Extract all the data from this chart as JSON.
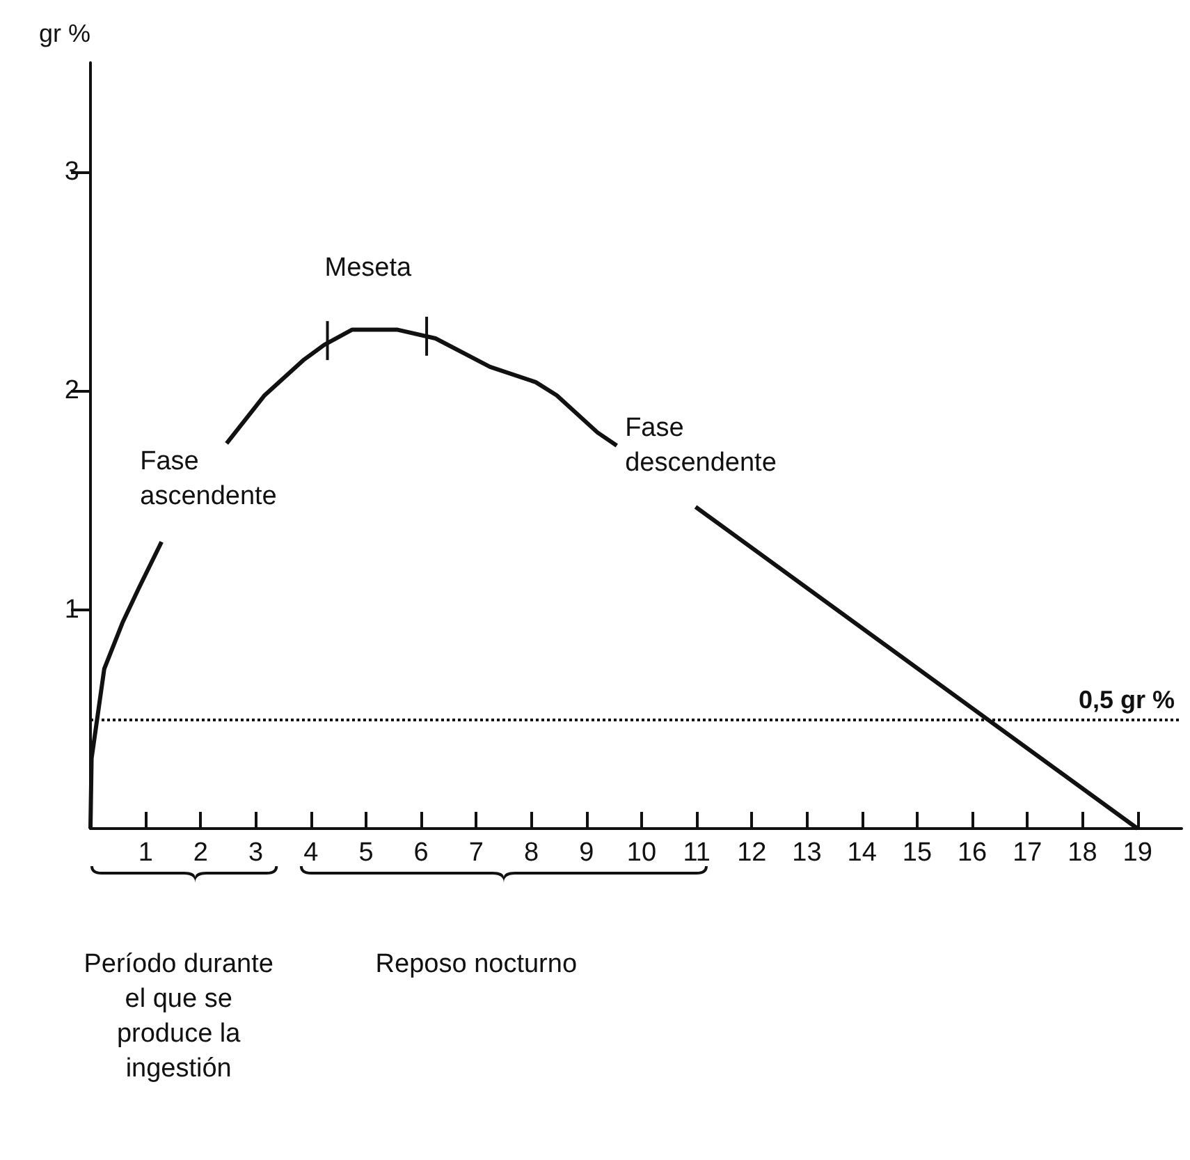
{
  "chart_data": {
    "type": "line",
    "ylabel": "gr %",
    "x": [
      0,
      0.02,
      0.25,
      0.58,
      0.88,
      1.29,
      1.9,
      2.47,
      3.16,
      3.86,
      4.24,
      4.75,
      5.56,
      6.26,
      7.25,
      8.08,
      8.46,
      9.2,
      9.55,
      10.3,
      10.98,
      19
    ],
    "series": [
      {
        "color": "#111111",
        "values": [
          0,
          0.32,
          0.73,
          0.94,
          1.1,
          1.31,
          null,
          1.76,
          1.98,
          2.14,
          2.21,
          2.28,
          2.28,
          2.24,
          2.11,
          2.04,
          1.98,
          1.81,
          1.75,
          null,
          1.47,
          0
        ]
      }
    ],
    "xlim": [
      0,
      19.8
    ],
    "xticks": [
      1,
      2,
      3,
      4,
      5,
      6,
      7,
      8,
      9,
      10,
      11,
      12,
      13,
      14,
      15,
      16,
      17,
      18,
      19
    ],
    "ylim": [
      0,
      3.5
    ],
    "yticks": [
      1,
      2,
      3
    ],
    "ref_lines": [
      {
        "axis": "y",
        "value": 0.5,
        "label": "0,5 gr %",
        "line_style": "dotted"
      }
    ],
    "annotations": [
      "Fase ascendente",
      "Meseta",
      "Fase descendente",
      "Período durante el que se produce la ingestión",
      "Reposo nocturno"
    ]
  }
}
